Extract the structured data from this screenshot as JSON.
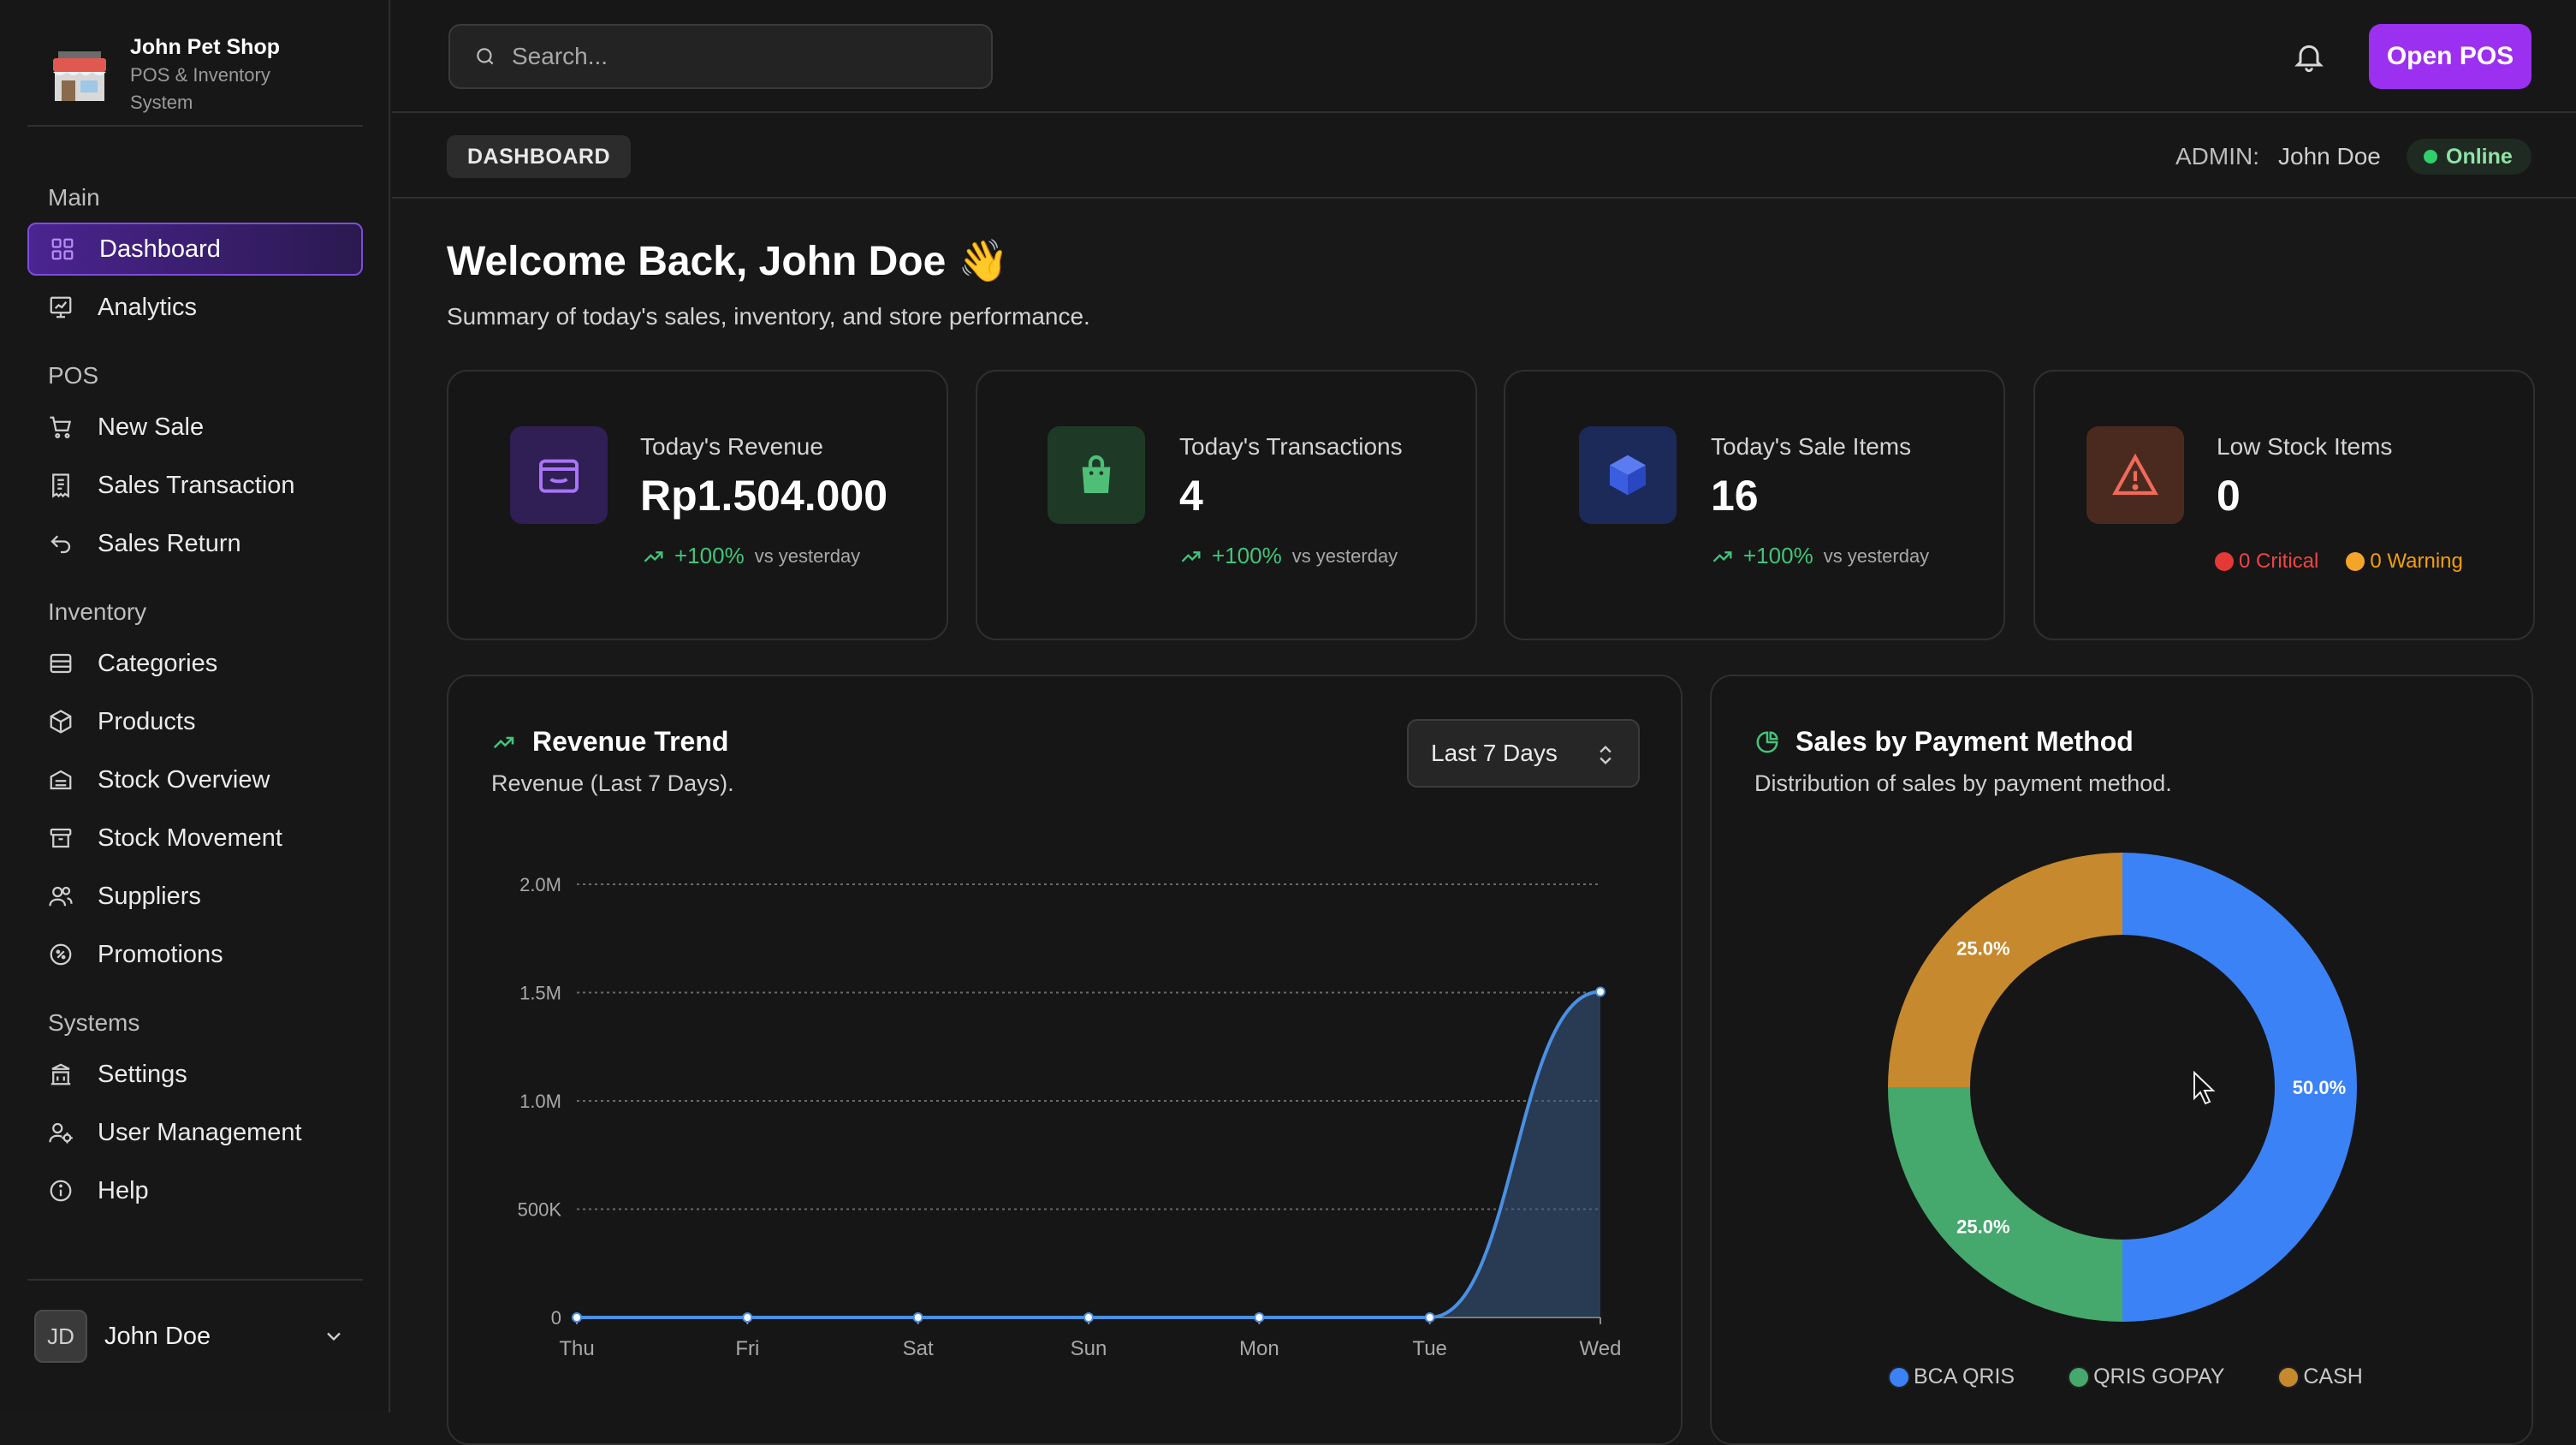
{
  "brand": {
    "name": "John Pet Shop",
    "subtitle": "POS & Inventory System"
  },
  "sidebar": {
    "sections": [
      {
        "title": "Main",
        "items": [
          {
            "label": "Dashboard",
            "icon": "grid-icon",
            "active": true
          },
          {
            "label": "Analytics",
            "icon": "chart-icon"
          }
        ]
      },
      {
        "title": "POS",
        "items": [
          {
            "label": "New Sale",
            "icon": "cart-icon"
          },
          {
            "label": "Sales Transaction",
            "icon": "receipt-icon"
          },
          {
            "label": "Sales Return",
            "icon": "return-icon"
          }
        ]
      },
      {
        "title": "Inventory",
        "items": [
          {
            "label": "Categories",
            "icon": "layers-icon"
          },
          {
            "label": "Products",
            "icon": "package-icon"
          },
          {
            "label": "Stock Overview",
            "icon": "stock-icon"
          },
          {
            "label": "Stock Movement",
            "icon": "archive-icon"
          },
          {
            "label": "Suppliers",
            "icon": "users-icon"
          },
          {
            "label": "Promotions",
            "icon": "promo-icon"
          }
        ]
      },
      {
        "title": "Systems",
        "items": [
          {
            "label": "Settings",
            "icon": "settings-icon"
          },
          {
            "label": "User Management",
            "icon": "user-gear-icon"
          },
          {
            "label": "Help",
            "icon": "info-icon"
          }
        ]
      }
    ],
    "user": {
      "initials": "JD",
      "name": "John Doe"
    }
  },
  "topbar": {
    "search_placeholder": "Search...",
    "open_pos_label": "Open POS"
  },
  "subheader": {
    "breadcrumb": "DASHBOARD",
    "admin_label": "ADMIN:",
    "admin_name": "John Doe",
    "status": "Online"
  },
  "welcome": {
    "title": "Welcome Back, John Doe",
    "emoji": "👋",
    "subtitle": "Summary of today's sales, inventory, and store performance."
  },
  "stats": {
    "revenue": {
      "label": "Today's Revenue",
      "value": "Rp1.504.000",
      "delta": "+100%",
      "vs": "vs yesterday"
    },
    "transactions": {
      "label": "Today's Transactions",
      "value": "4",
      "delta": "+100%",
      "vs": "vs yesterday"
    },
    "items": {
      "label": "Today's Sale Items",
      "value": "16",
      "delta": "+100%",
      "vs": "vs yesterday"
    },
    "low_stock": {
      "label": "Low Stock Items",
      "value": "0",
      "critical": "0 Critical",
      "warning": "0 Warning"
    }
  },
  "revenue_panel": {
    "title": "Revenue Trend",
    "subtitle": "Revenue (Last 7 Days).",
    "range": "Last 7 Days"
  },
  "payment_panel": {
    "title": "Sales by Payment Method",
    "subtitle": "Distribution of sales by payment method."
  },
  "colors": {
    "accent": "#9b30f0",
    "line": "#4a90e2",
    "bca": "#3b82f6",
    "gopay": "#45a86c",
    "cash": "#c6892e",
    "success": "#42c47a"
  },
  "chart_data": [
    {
      "type": "area",
      "title": "Revenue Trend",
      "categories": [
        "Thu",
        "Fri",
        "Sat",
        "Sun",
        "Mon",
        "Tue",
        "Wed"
      ],
      "values": [
        0,
        0,
        0,
        0,
        0,
        0,
        1504000
      ],
      "y_ticks": [
        "0",
        "500K",
        "1.0M",
        "1.5M",
        "2.0M"
      ],
      "y_tick_values": [
        0,
        500000,
        1000000,
        1500000,
        2000000
      ],
      "ylim": [
        0,
        2000000
      ],
      "grid": true
    },
    {
      "type": "pie",
      "title": "Sales by Payment Method",
      "labels": [
        "BCA QRIS",
        "QRIS GOPAY",
        "CASH"
      ],
      "values": [
        50,
        25,
        25
      ],
      "value_labels": [
        "50.0%",
        "25.0%",
        "25.0%"
      ],
      "colors": [
        "#3b82f6",
        "#45a86c",
        "#c6892e"
      ],
      "legend": "bottom"
    }
  ]
}
